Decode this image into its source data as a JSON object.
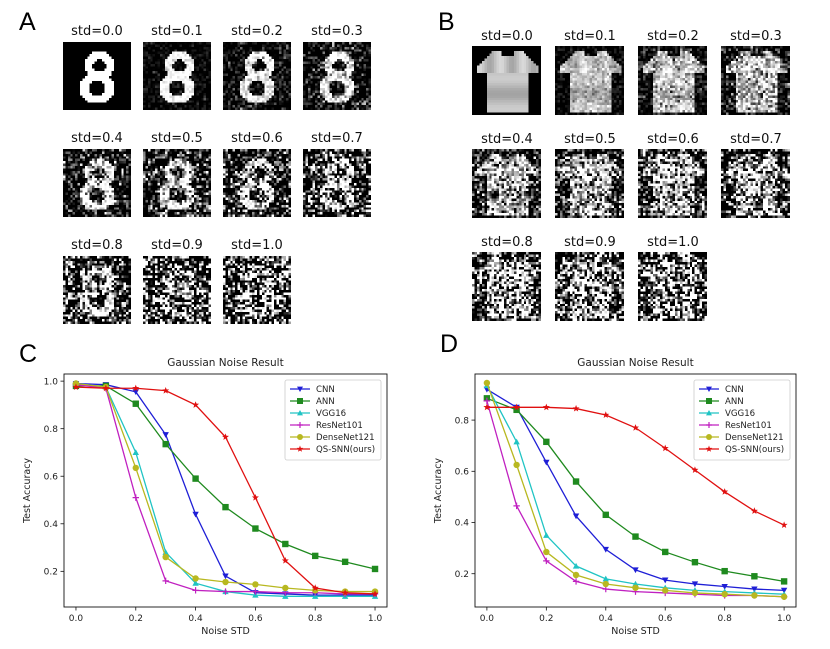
{
  "panels": {
    "A": {
      "letter": "A",
      "dataset": "mnist",
      "std_labels": [
        "std=0.0",
        "std=0.1",
        "std=0.2",
        "std=0.3",
        "std=0.4",
        "std=0.5",
        "std=0.6",
        "std=0.7",
        "std=0.8",
        "std=0.9",
        "std=1.0"
      ]
    },
    "B": {
      "letter": "B",
      "dataset": "fashion",
      "std_labels": [
        "std=0.0",
        "std=0.1",
        "std=0.2",
        "std=0.3",
        "std=0.4",
        "std=0.5",
        "std=0.6",
        "std=0.7",
        "std=0.8",
        "std=0.9",
        "std=1.0"
      ]
    },
    "C": {
      "letter": "C"
    },
    "D": {
      "letter": "D"
    }
  },
  "noise_levels": [
    0.0,
    0.1,
    0.2,
    0.3,
    0.4,
    0.5,
    0.6,
    0.7,
    0.8,
    0.9,
    1.0
  ],
  "colors": {
    "CNN": "#1f1fd6",
    "ANN": "#1f8a1f",
    "VGG16": "#20c4c4",
    "ResNet101": "#c020c0",
    "DenseNet121": "#b8b820",
    "QS-SNN(ours)": "#e01010"
  },
  "chart_data": [
    {
      "type": "line",
      "title": "Gaussian Noise Result",
      "xlabel": "Noise STD",
      "ylabel": "Test Accuracy",
      "xlim": [
        -0.04,
        1.04
      ],
      "ylim": [
        0.05,
        1.03
      ],
      "xticks": [
        0.0,
        0.2,
        0.4,
        0.6,
        0.8,
        1.0
      ],
      "xtick_labels": [
        "0.0",
        "0.2",
        "0.4",
        "0.6",
        "0.8",
        "1.0"
      ],
      "yticks": [
        0.2,
        0.4,
        0.6,
        0.8,
        1.0
      ],
      "ytick_labels": [
        "0.2",
        "0.4",
        "0.6",
        "0.8",
        "1.0"
      ],
      "legend_position": "top-right",
      "x": [
        0.0,
        0.1,
        0.2,
        0.3,
        0.4,
        0.5,
        0.6,
        0.7,
        0.8,
        0.9,
        1.0
      ],
      "series": [
        {
          "name": "CNN",
          "marker": "triangle-down",
          "values": [
            0.99,
            0.985,
            0.955,
            0.775,
            0.44,
            0.18,
            0.11,
            0.105,
            0.1,
            0.1,
            0.1
          ]
        },
        {
          "name": "ANN",
          "marker": "square",
          "values": [
            0.98,
            0.98,
            0.905,
            0.735,
            0.59,
            0.47,
            0.38,
            0.315,
            0.265,
            0.24,
            0.21
          ]
        },
        {
          "name": "VGG16",
          "marker": "triangle-up",
          "values": [
            0.99,
            0.975,
            0.7,
            0.28,
            0.15,
            0.115,
            0.1,
            0.095,
            0.095,
            0.095,
            0.095
          ]
        },
        {
          "name": "ResNet101",
          "marker": "plus",
          "values": [
            0.985,
            0.97,
            0.51,
            0.16,
            0.12,
            0.115,
            0.115,
            0.11,
            0.11,
            0.105,
            0.105
          ]
        },
        {
          "name": "DenseNet121",
          "marker": "circle",
          "values": [
            0.99,
            0.975,
            0.635,
            0.26,
            0.17,
            0.155,
            0.145,
            0.13,
            0.12,
            0.115,
            0.115
          ]
        },
        {
          "name": "QS-SNN(ours)",
          "marker": "star",
          "values": [
            0.975,
            0.97,
            0.97,
            0.96,
            0.9,
            0.765,
            0.51,
            0.245,
            0.13,
            0.11,
            0.105
          ]
        }
      ]
    },
    {
      "type": "line",
      "title": "Gaussian Noise Result",
      "xlabel": "Noise STD",
      "ylabel": "Test Accuracy",
      "xlim": [
        -0.04,
        1.04
      ],
      "ylim": [
        0.07,
        0.98
      ],
      "xticks": [
        0.0,
        0.2,
        0.4,
        0.6,
        0.8,
        1.0
      ],
      "xtick_labels": [
        "0.0",
        "0.2",
        "0.4",
        "0.6",
        "0.8",
        "1.0"
      ],
      "yticks": [
        0.2,
        0.4,
        0.6,
        0.8
      ],
      "ytick_labels": [
        "0.2",
        "0.4",
        "0.6",
        "0.8"
      ],
      "legend_position": "top-right",
      "x": [
        0.0,
        0.1,
        0.2,
        0.3,
        0.4,
        0.5,
        0.6,
        0.7,
        0.8,
        0.9,
        1.0
      ],
      "series": [
        {
          "name": "CNN",
          "marker": "triangle-down",
          "values": [
            0.92,
            0.85,
            0.635,
            0.425,
            0.295,
            0.215,
            0.175,
            0.16,
            0.15,
            0.14,
            0.135
          ]
        },
        {
          "name": "ANN",
          "marker": "square",
          "values": [
            0.885,
            0.84,
            0.715,
            0.56,
            0.43,
            0.345,
            0.285,
            0.245,
            0.21,
            0.19,
            0.17
          ]
        },
        {
          "name": "VGG16",
          "marker": "triangle-up",
          "values": [
            0.935,
            0.715,
            0.35,
            0.23,
            0.18,
            0.16,
            0.145,
            0.135,
            0.13,
            0.125,
            0.12
          ]
        },
        {
          "name": "ResNet101",
          "marker": "plus",
          "values": [
            0.875,
            0.465,
            0.25,
            0.17,
            0.14,
            0.13,
            0.125,
            0.12,
            0.115,
            0.115,
            0.11
          ]
        },
        {
          "name": "DenseNet121",
          "marker": "circle",
          "values": [
            0.945,
            0.625,
            0.285,
            0.195,
            0.16,
            0.145,
            0.135,
            0.125,
            0.12,
            0.115,
            0.11
          ]
        },
        {
          "name": "QS-SNN(ours)",
          "marker": "star",
          "values": [
            0.85,
            0.85,
            0.85,
            0.845,
            0.82,
            0.77,
            0.69,
            0.605,
            0.52,
            0.445,
            0.39
          ]
        }
      ]
    }
  ]
}
